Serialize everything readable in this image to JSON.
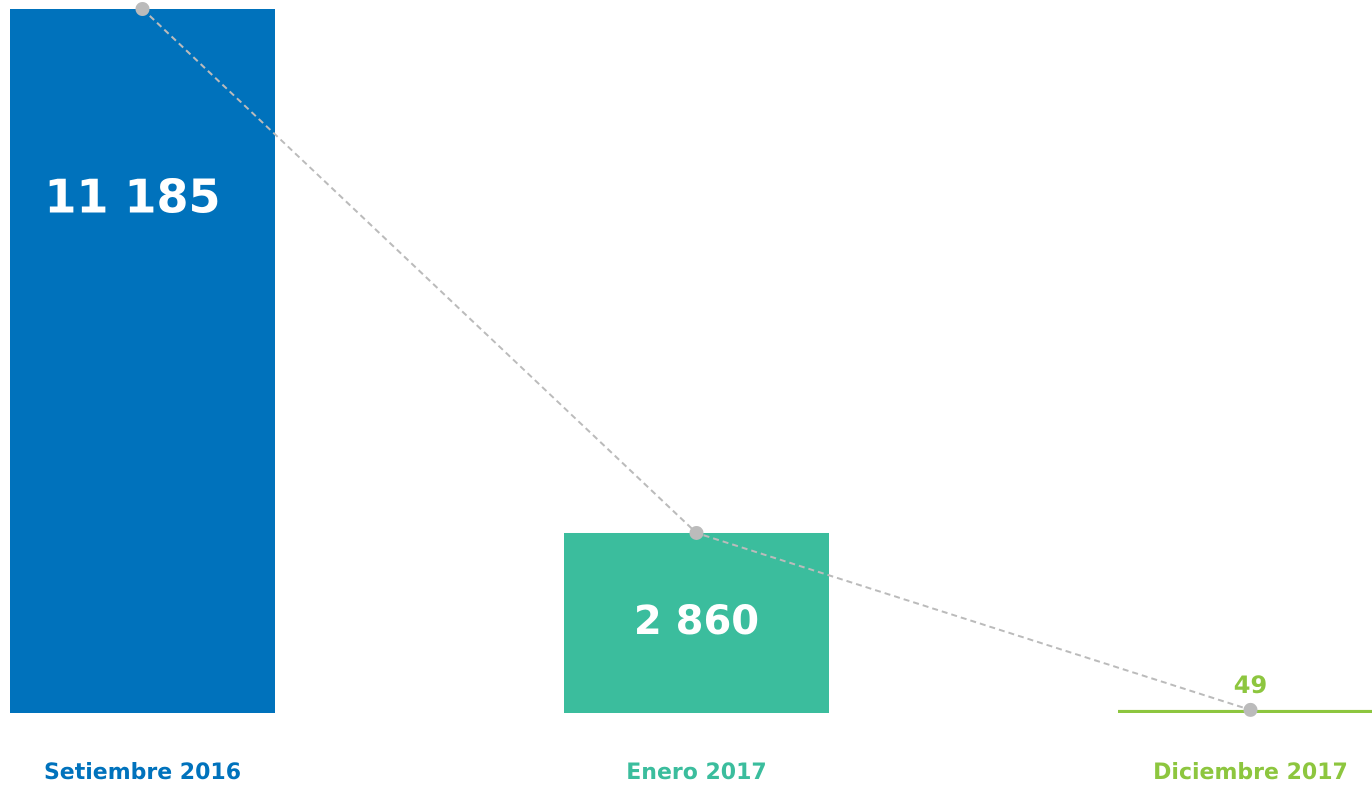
{
  "chart_data": {
    "type": "bar",
    "categories": [
      "Setiembre 2016",
      "Enero 2017",
      "Diciembre 2017"
    ],
    "values": [
      11185,
      2860,
      49
    ],
    "value_labels": [
      "11 185",
      "2 860",
      "49"
    ],
    "colors": [
      "#0072bc",
      "#3bbd9d",
      "#8dc63f"
    ],
    "ylim": [
      0,
      11185
    ],
    "trend_line": true
  }
}
